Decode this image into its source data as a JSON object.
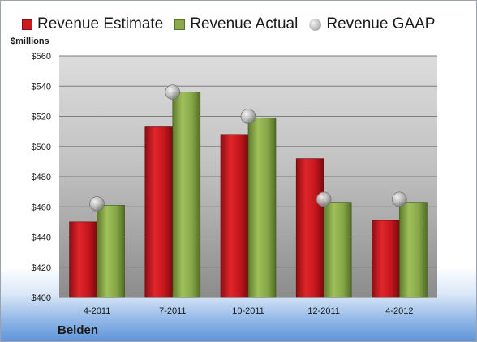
{
  "chart_data": {
    "type": "bar",
    "categories": [
      "4-2011",
      "7-2011",
      "10-2011",
      "12-2011",
      "4-2012"
    ],
    "series": [
      {
        "name": "Revenue Estimate",
        "values": [
          450,
          513,
          508,
          492,
          451
        ],
        "color": "#cc1a1f",
        "kind": "bar"
      },
      {
        "name": "Revenue Actual",
        "values": [
          461,
          536,
          519,
          463,
          463
        ],
        "color": "#8aab4a",
        "kind": "bar"
      },
      {
        "name": "Revenue GAAP",
        "values": [
          462,
          536,
          520,
          465,
          465
        ],
        "color": "#b5b5b5",
        "kind": "marker"
      }
    ],
    "ylabel": "$millions",
    "ylim": [
      400,
      560
    ],
    "yticks": [
      "$400",
      "$420",
      "$440",
      "$460",
      "$480",
      "$500",
      "$520",
      "$540",
      "$560"
    ],
    "ytick_values": [
      400,
      420,
      440,
      460,
      480,
      500,
      520,
      540,
      560
    ],
    "legend_position": "top",
    "grid": true
  },
  "company": "Belden"
}
